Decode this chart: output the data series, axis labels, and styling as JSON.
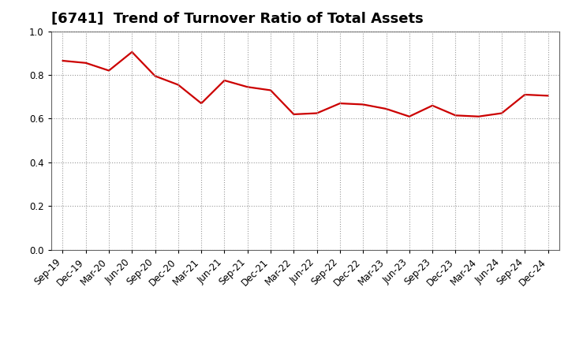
{
  "title": "[6741]  Trend of Turnover Ratio of Total Assets",
  "x_labels": [
    "Sep-19",
    "Dec-19",
    "Mar-20",
    "Jun-20",
    "Sep-20",
    "Dec-20",
    "Mar-21",
    "Jun-21",
    "Sep-21",
    "Dec-21",
    "Mar-22",
    "Jun-22",
    "Sep-22",
    "Dec-22",
    "Mar-23",
    "Jun-23",
    "Sep-23",
    "Dec-23",
    "Mar-24",
    "Jun-24",
    "Sep-24",
    "Dec-24"
  ],
  "values": [
    0.865,
    0.855,
    0.82,
    0.905,
    0.795,
    0.755,
    0.67,
    0.775,
    0.745,
    0.73,
    0.62,
    0.625,
    0.67,
    0.665,
    0.645,
    0.61,
    0.66,
    0.615,
    0.61,
    0.625,
    0.71,
    0.705
  ],
  "line_color": "#cc0000",
  "background_color": "#ffffff",
  "grid_color": "#999999",
  "ylim": [
    0.0,
    1.0
  ],
  "yticks": [
    0.0,
    0.2,
    0.4,
    0.6,
    0.8,
    1.0
  ],
  "title_fontsize": 13,
  "tick_fontsize": 8.5,
  "line_width": 1.6
}
